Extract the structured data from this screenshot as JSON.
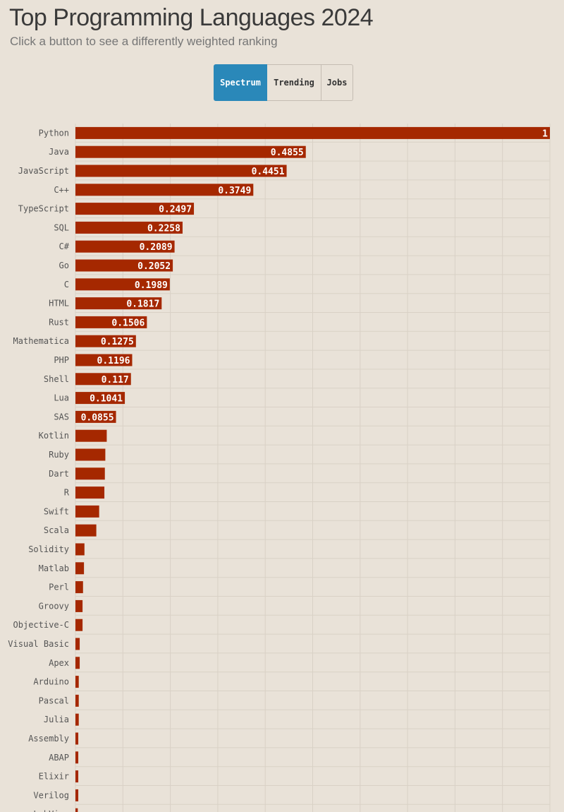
{
  "header": {
    "title": "Top Programming Languages 2024",
    "subtitle": "Click a button to see a differently weighted ranking"
  },
  "buttons": [
    {
      "label": "Spectrum",
      "active": true
    },
    {
      "label": "Trending",
      "active": false
    },
    {
      "label": "Jobs",
      "active": false
    }
  ],
  "colors": {
    "bar": "#a52800",
    "active_button": "#2a88b9",
    "background": "#e9e2d8",
    "grid": "#d9d1c6"
  },
  "chart_data": {
    "type": "bar",
    "orientation": "horizontal",
    "xlim": [
      0,
      1
    ],
    "grid": true,
    "categories": [
      "Python",
      "Java",
      "JavaScript",
      "C++",
      "TypeScript",
      "SQL",
      "C#",
      "Go",
      "C",
      "HTML",
      "Rust",
      "Mathematica",
      "PHP",
      "Shell",
      "Lua",
      "SAS",
      "Kotlin",
      "Ruby",
      "Dart",
      "R",
      "Swift",
      "Scala",
      "Solidity",
      "Matlab",
      "Perl",
      "Groovy",
      "Objective-C",
      "Visual Basic",
      "Apex",
      "Arduino",
      "Pascal",
      "Julia",
      "Assembly",
      "ABAP",
      "Elixir",
      "Verilog",
      "LabView"
    ],
    "values": [
      1,
      0.4855,
      0.4451,
      0.3749,
      0.2497,
      0.2258,
      0.2089,
      0.2052,
      0.1989,
      0.1817,
      0.1506,
      0.1275,
      0.1196,
      0.117,
      0.1041,
      0.0855,
      0.066,
      0.063,
      0.062,
      0.061,
      0.05,
      0.044,
      0.019,
      0.018,
      0.016,
      0.015,
      0.015,
      0.009,
      0.009,
      0.007,
      0.007,
      0.007,
      0.006,
      0.006,
      0.006,
      0.006,
      0.005
    ],
    "labels": [
      "1",
      "0.4855",
      "0.4451",
      "0.3749",
      "0.2497",
      "0.2258",
      "0.2089",
      "0.2052",
      "0.1989",
      "0.1817",
      "0.1506",
      "0.1275",
      "0.1196",
      "0.117",
      "0.1041",
      "0.0855"
    ]
  }
}
